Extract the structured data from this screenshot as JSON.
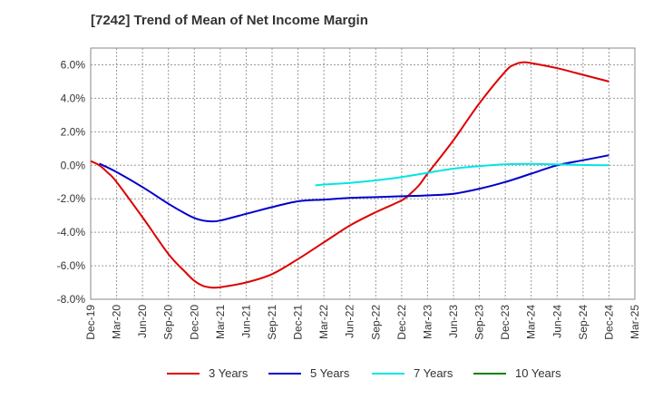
{
  "chart_data": {
    "type": "line",
    "title": "[7242]  Trend of Mean of Net Income Margin",
    "xlabel": "",
    "ylabel": "",
    "x_ticks": [
      "Dec-19",
      "Mar-20",
      "Jun-20",
      "Sep-20",
      "Dec-20",
      "Mar-21",
      "Jun-21",
      "Sep-21",
      "Dec-21",
      "Mar-22",
      "Jun-22",
      "Sep-22",
      "Dec-22",
      "Mar-23",
      "Jun-23",
      "Sep-23",
      "Dec-23",
      "Mar-24",
      "Jun-24",
      "Sep-24",
      "Dec-24",
      "Mar-25"
    ],
    "y_ticks": [
      "6.0%",
      "4.0%",
      "2.0%",
      "0.0%",
      "-2.0%",
      "-4.0%",
      "-6.0%",
      "-8.0%"
    ],
    "ylim": [
      -8.0,
      7.0
    ],
    "grid": true,
    "legend_position": "bottom",
    "series": [
      {
        "name": "3 Years",
        "color": "#dd0000",
        "x": [
          "Dec-19",
          "Jan-20",
          "Feb-20",
          "Mar-20",
          "Jun-20",
          "Sep-20",
          "Nov-20",
          "Dec-20",
          "Jan-21",
          "Feb-21",
          "Mar-21",
          "Jun-21",
          "Sep-21",
          "Dec-21",
          "Mar-22",
          "Jun-22",
          "Sep-22",
          "Dec-22",
          "Jan-23",
          "Feb-23",
          "Mar-23",
          "Jun-23",
          "Sep-23",
          "Dec-23",
          "Jan-24",
          "Feb-24",
          "Mar-24",
          "Jun-24",
          "Sep-24",
          "Dec-24"
        ],
        "values": [
          0.25,
          0.0,
          -0.45,
          -1.0,
          -3.1,
          -5.3,
          -6.4,
          -6.9,
          -7.2,
          -7.3,
          -7.28,
          -7.0,
          -6.5,
          -5.6,
          -4.6,
          -3.6,
          -2.8,
          -2.1,
          -1.7,
          -1.2,
          -0.5,
          1.5,
          3.7,
          5.6,
          6.0,
          6.15,
          6.1,
          5.8,
          5.4,
          5.0
        ]
      },
      {
        "name": "5 Years",
        "color": "#0000cc",
        "x": [
          "Jan-20",
          "Mar-20",
          "Jun-20",
          "Sep-20",
          "Nov-20",
          "Dec-20",
          "Jan-21",
          "Feb-21",
          "Mar-21",
          "Jun-21",
          "Sep-21",
          "Dec-21",
          "Mar-22",
          "Jun-22",
          "Sep-22",
          "Dec-22",
          "Mar-23",
          "Jun-23",
          "Sep-23",
          "Dec-23",
          "Mar-24",
          "Jun-24",
          "Sep-24",
          "Dec-24"
        ],
        "values": [
          0.1,
          -0.4,
          -1.3,
          -2.3,
          -2.9,
          -3.15,
          -3.3,
          -3.35,
          -3.3,
          -2.9,
          -2.5,
          -2.15,
          -2.05,
          -1.95,
          -1.9,
          -1.85,
          -1.8,
          -1.7,
          -1.4,
          -1.0,
          -0.5,
          0.0,
          0.3,
          0.6
        ]
      },
      {
        "name": "7 Years",
        "color": "#00e5e5",
        "x": [
          "Feb-22",
          "Mar-22",
          "Jun-22",
          "Sep-22",
          "Dec-22",
          "Mar-23",
          "Jun-23",
          "Sep-23",
          "Dec-23",
          "Mar-24",
          "Jun-24",
          "Sep-24",
          "Dec-24"
        ],
        "values": [
          -1.2,
          -1.15,
          -1.05,
          -0.9,
          -0.7,
          -0.45,
          -0.2,
          -0.05,
          0.05,
          0.08,
          0.05,
          0.02,
          0.0
        ]
      },
      {
        "name": "10 Years",
        "color": "#008000",
        "x": [],
        "values": []
      }
    ]
  }
}
